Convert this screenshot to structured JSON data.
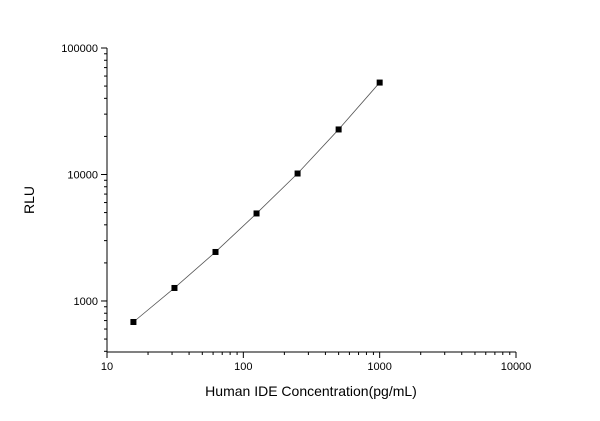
{
  "chart_data": {
    "type": "scatter",
    "log_x": true,
    "log_y": true,
    "x_label": "Human IDE Concentration(pg/mL)",
    "y_label": "RLU",
    "x": [
      15.625,
      31.25,
      62.5,
      125,
      250,
      500,
      1000
    ],
    "values": [
      682,
      1267,
      2440,
      4920,
      10180,
      22700,
      53300
    ],
    "color": "#000000",
    "line_color": "#555555",
    "xlim": [
      10,
      10000
    ],
    "xticks": [
      10,
      100,
      1000,
      10000
    ],
    "ylim": [
      395,
      100000
    ],
    "yticks": [
      1000,
      10000,
      100000
    ]
  }
}
